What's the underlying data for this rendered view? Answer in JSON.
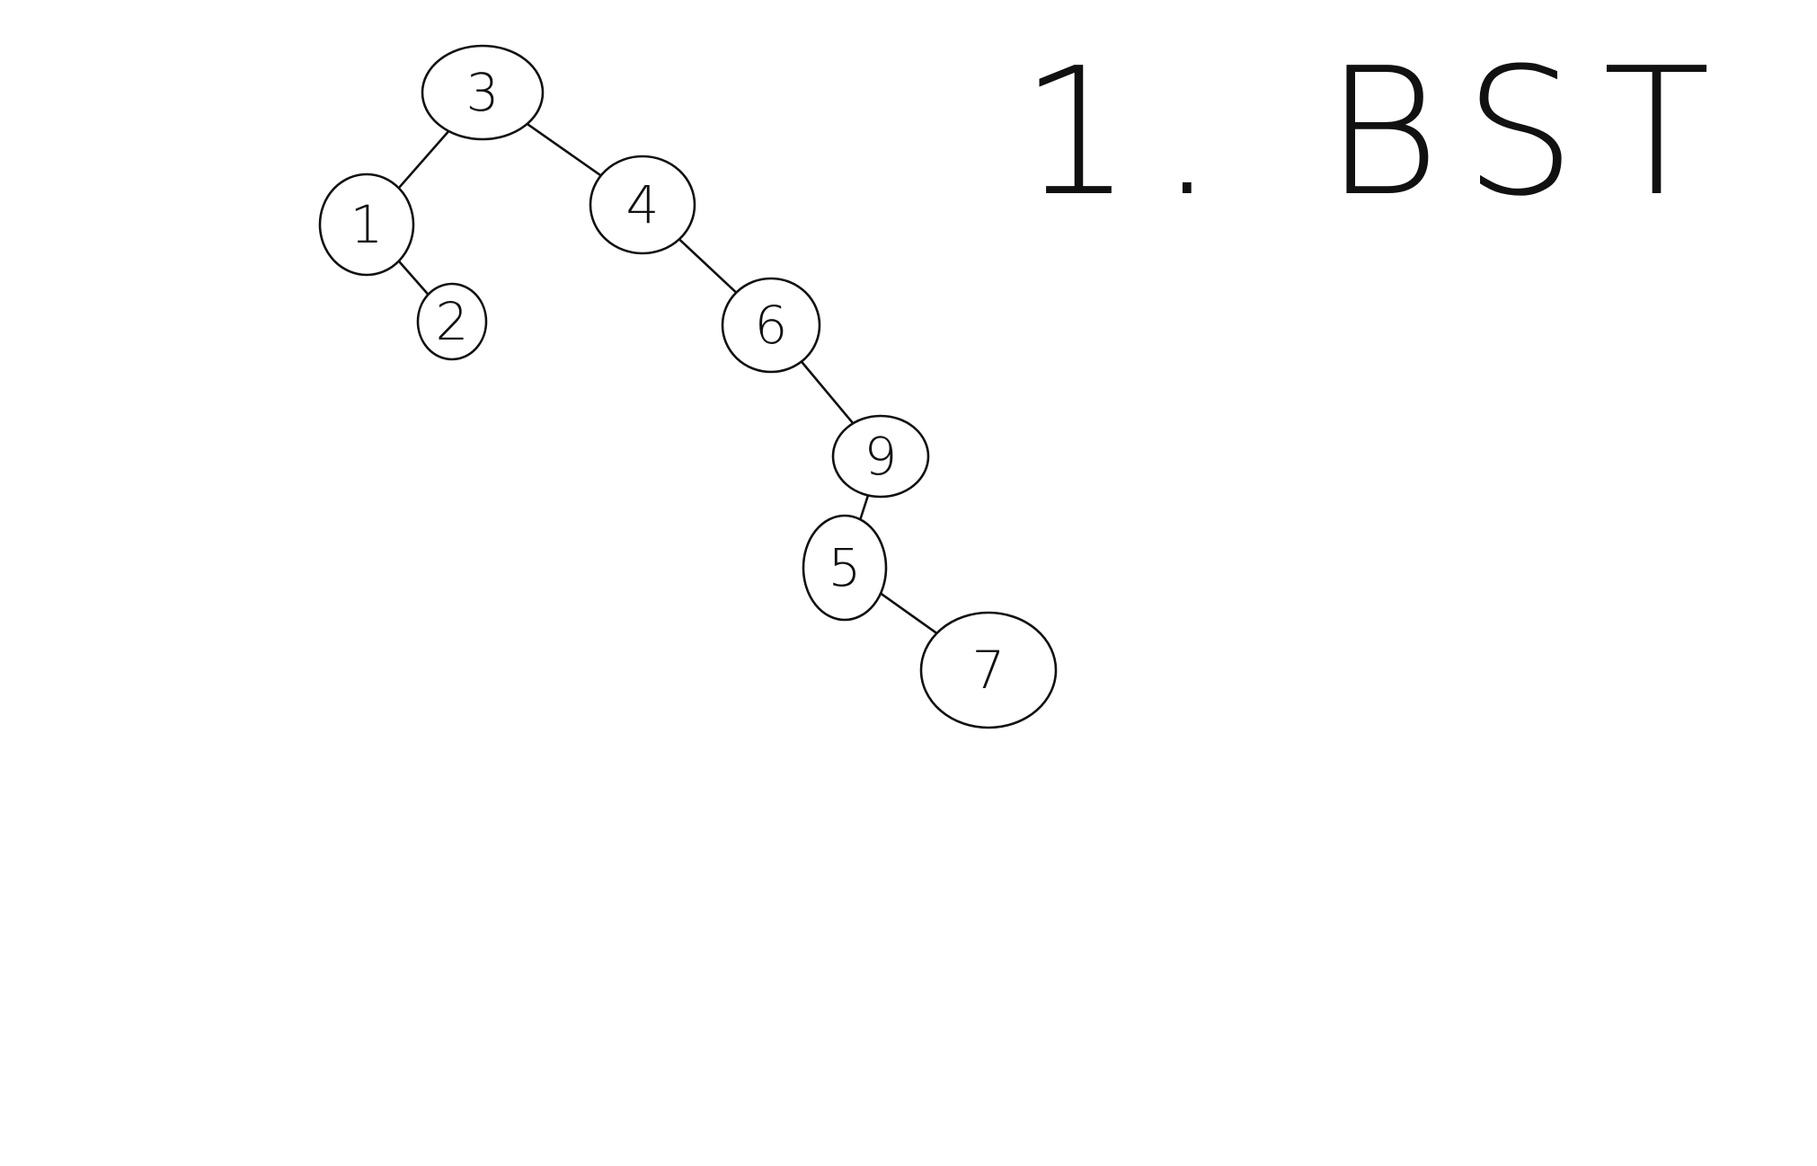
{
  "title": "1. BST",
  "tree": {
    "nodes": [
      {
        "id": "n3",
        "label": "3"
      },
      {
        "id": "n1",
        "label": "1"
      },
      {
        "id": "n2",
        "label": "2"
      },
      {
        "id": "n4",
        "label": "4"
      },
      {
        "id": "n6",
        "label": "6"
      },
      {
        "id": "n9",
        "label": "9"
      },
      {
        "id": "n5",
        "label": "5"
      },
      {
        "id": "n7",
        "label": "7"
      }
    ],
    "edges": [
      {
        "from": "n3",
        "to": "n1"
      },
      {
        "from": "n3",
        "to": "n4"
      },
      {
        "from": "n1",
        "to": "n2"
      },
      {
        "from": "n4",
        "to": "n6"
      },
      {
        "from": "n6",
        "to": "n9"
      },
      {
        "from": "n9",
        "to": "n5"
      },
      {
        "from": "n5",
        "to": "n7"
      }
    ]
  },
  "colors": {
    "ink": "#111111",
    "background": "#ffffff"
  }
}
